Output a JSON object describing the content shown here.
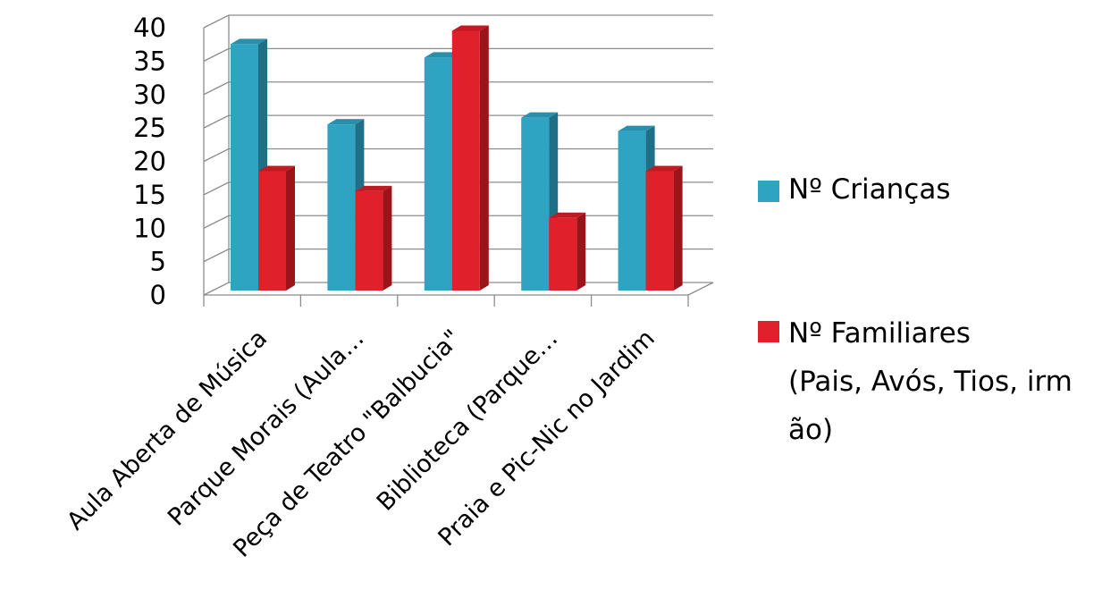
{
  "chart_data": {
    "type": "bar",
    "categories": [
      "Aula Aberta de Música",
      "Parque Morais (Aula…",
      "Peça de Teatro \"Balbucia\"",
      "Biblioteca (Parque…",
      "Praia e Pic-Nic no Jardim"
    ],
    "series": [
      {
        "name": "Nº Crianças",
        "values": [
          37,
          25,
          35,
          26,
          24
        ],
        "color": "#2fa3c2",
        "side_color": "#1f6f87",
        "top_color": "#2a8fab"
      },
      {
        "name": "Nº Familiares (Pais, Avós, Tios, irmão)",
        "values": [
          18,
          15,
          39,
          11,
          18
        ],
        "color": "#e0202a",
        "side_color": "#9a1419",
        "top_color": "#c01a22"
      }
    ],
    "yticks": [
      "0",
      "5",
      "10",
      "15",
      "20",
      "25",
      "30",
      "35",
      "40"
    ],
    "ylim": [
      0,
      40
    ],
    "grid": true,
    "legend_position": "right",
    "style": "3d-clustered-column"
  },
  "legend": {
    "item1": "Nº Crianças",
    "item2_line1": "Nº Familiares",
    "item2_line2": "(Pais, Avós, Tios, irm",
    "item2_line3": "ão)"
  }
}
